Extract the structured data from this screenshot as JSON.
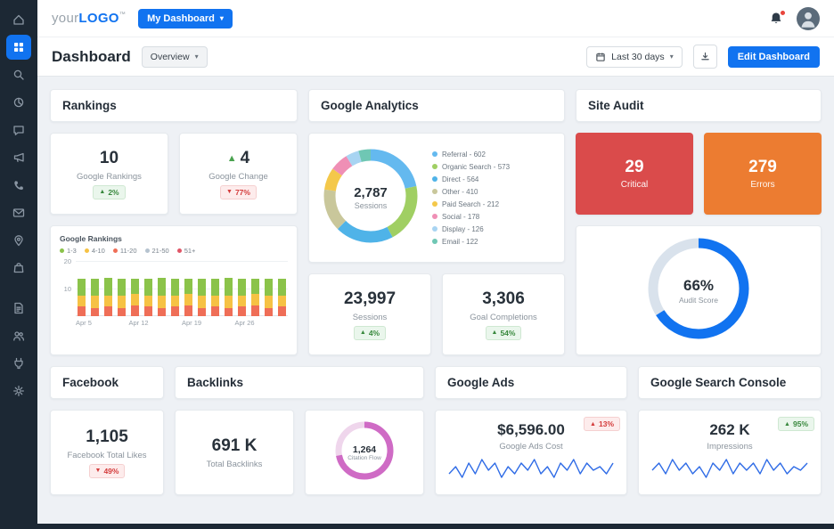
{
  "topbar": {
    "logo": {
      "your": "your",
      "logo": "LOGO",
      "tm": "™"
    },
    "my_dashboard_label": "My Dashboard"
  },
  "toolbar": {
    "title": "Dashboard",
    "overview_label": "Overview",
    "date_range_label": "Last 30 days",
    "edit_label": "Edit Dashboard"
  },
  "sidebar": {
    "items": [
      "home",
      "dashboard",
      "search",
      "analytics",
      "messages",
      "campaigns",
      "calls",
      "email",
      "local",
      "ecommerce",
      "reports",
      "clients",
      "integrations",
      "settings"
    ],
    "active": "dashboard"
  },
  "rankings": {
    "title": "Rankings",
    "stat1": {
      "value": "10",
      "label": "Google Rankings",
      "badge": "2%"
    },
    "stat2": {
      "value": "4",
      "label": "Google Change",
      "badge": "77%"
    }
  },
  "analytics": {
    "title": "Google Analytics",
    "stat1": {
      "value": "23,997",
      "label": "Sessions",
      "badge": "4%"
    },
    "stat2": {
      "value": "3,306",
      "label": "Goal Completions",
      "badge": "54%"
    }
  },
  "audit": {
    "title": "Site Audit",
    "critical": {
      "value": "29",
      "label": "Critical"
    },
    "errors": {
      "value": "279",
      "label": "Errors"
    },
    "score_value": "66%",
    "score_label": "Audit Score"
  },
  "facebook": {
    "title": "Facebook",
    "stat": {
      "value": "1,105",
      "label": "Facebook Total Likes",
      "badge": "49%"
    }
  },
  "backlinks": {
    "title": "Backlinks",
    "stat": {
      "value": "691 K",
      "label": "Total Backlinks"
    }
  },
  "google_ads": {
    "title": "Google Ads",
    "stat": {
      "value": "$6,596.00",
      "label": "Google Ads Cost",
      "badge": "13%"
    }
  },
  "search_console": {
    "title": "Google Search Console",
    "stat": {
      "value": "262 K",
      "label": "Impressions",
      "badge": "95%"
    }
  },
  "chart_data": {
    "rankings_bar": {
      "type": "bar",
      "title": "Google Rankings",
      "stacked": true,
      "ylim": [
        0,
        20
      ],
      "y_ticks": [
        10,
        20
      ],
      "x_ticks": [
        "Apr 5",
        "Apr 12",
        "Apr 19",
        "Apr 26"
      ],
      "legend": [
        {
          "label": "1-3",
          "color": "#8bc34a"
        },
        {
          "label": "4-10",
          "color": "#f6c244"
        },
        {
          "label": "11-20",
          "color": "#ef6e57"
        },
        {
          "label": "21-50",
          "color": "#b6c3cf"
        },
        {
          "label": "51+",
          "color": "#e05667"
        }
      ],
      "series": [
        {
          "name": "11-20",
          "color": "#ef6e57",
          "values": [
            3.5,
            3,
            3.5,
            3,
            4,
            3.5,
            3,
            3.5,
            4,
            3,
            3.5,
            3,
            3.5,
            4,
            3,
            3.5
          ]
        },
        {
          "name": "4-10",
          "color": "#f6c244",
          "values": [
            4,
            4.5,
            4,
            4.5,
            4,
            4,
            4.5,
            4,
            4,
            4.5,
            4,
            4.5,
            4,
            4,
            4.5,
            4
          ]
        },
        {
          "name": "1-3",
          "color": "#8bc34a",
          "values": [
            6,
            6,
            6.5,
            6,
            5.5,
            6,
            6.5,
            6,
            5.5,
            6,
            6,
            6.5,
            6,
            5.5,
            6,
            6
          ]
        }
      ]
    },
    "analytics_donut": {
      "type": "pie",
      "center_value": "2,787",
      "center_label": "Sessions",
      "items": [
        {
          "label": "Referral",
          "value": 602,
          "color": "#64b9ef"
        },
        {
          "label": "Organic Search",
          "value": 573,
          "color": "#a0cf63"
        },
        {
          "label": "Direct",
          "value": 564,
          "color": "#4fb3e8"
        },
        {
          "label": "Other",
          "value": 410,
          "color": "#c9c79b"
        },
        {
          "label": "Paid Search",
          "value": 212,
          "color": "#f4c84a"
        },
        {
          "label": "Social",
          "value": 178,
          "color": "#ef8fb5"
        },
        {
          "label": "Display",
          "value": 126,
          "color": "#a8d4f2"
        },
        {
          "label": "Email",
          "value": 122,
          "color": "#6fc7b4"
        }
      ]
    },
    "audit_gauge": {
      "type": "donut",
      "value": 66,
      "color": "#1173f0",
      "track": "#d9e2ec"
    },
    "citation_donut": {
      "type": "donut",
      "center_value": "1,264",
      "center_label": "Citation Flow",
      "segments": [
        {
          "value": 72,
          "color": "#cf6bc5"
        },
        {
          "value": 28,
          "color": "#efd6ec"
        }
      ]
    },
    "ads_sparkline": {
      "type": "line",
      "color": "#2e6be6",
      "values": [
        3,
        5,
        2,
        6,
        3,
        7,
        4,
        6,
        2,
        5,
        3,
        6,
        4,
        7,
        3,
        5,
        2,
        6,
        4,
        7,
        3,
        6,
        4,
        5,
        3,
        6
      ]
    },
    "impressions_sparkline": {
      "type": "line",
      "color": "#2e6be6",
      "values": [
        4,
        6,
        3,
        7,
        4,
        6,
        3,
        5,
        2,
        6,
        4,
        7,
        3,
        6,
        4,
        6,
        3,
        7,
        4,
        6,
        3,
        5,
        4,
        6
      ]
    }
  }
}
